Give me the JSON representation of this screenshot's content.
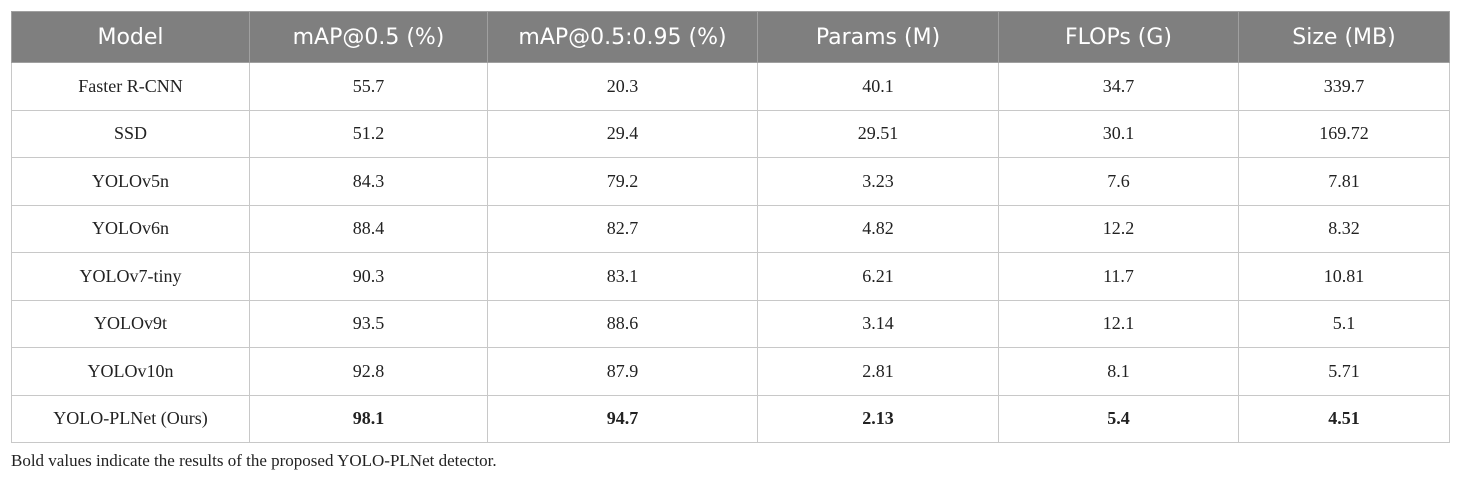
{
  "table": {
    "header": [
      "Model",
      "mAP@0.5 (%)",
      "mAP@0.5:0.95 (%)",
      "Params (M)",
      "FLOPs (G)",
      "Size (MB)"
    ],
    "rows": [
      [
        "Faster R-CNN",
        "55.7",
        "20.3",
        "40.1",
        "34.7",
        "339.7"
      ],
      [
        "SSD",
        "51.2",
        "29.4",
        "29.51",
        "30.1",
        "169.72"
      ],
      [
        "YOLOv5n",
        "84.3",
        "79.2",
        "3.23",
        "7.6",
        "7.81"
      ],
      [
        "YOLOv6n",
        "88.4",
        "82.7",
        "4.82",
        "12.2",
        "8.32"
      ],
      [
        "YOLOv7-tiny",
        "90.3",
        "83.1",
        "6.21",
        "11.7",
        "10.81"
      ],
      [
        "YOLOv9t",
        "93.5",
        "88.6",
        "3.14",
        "12.1",
        "5.1"
      ],
      [
        "YOLOv10n",
        "92.8",
        "87.9",
        "2.81",
        "8.1",
        "5.71"
      ],
      [
        "YOLO-PLNet (Ours)",
        "98.1",
        "94.7",
        "2.13",
        "5.4",
        "4.51"
      ]
    ]
  },
  "footnote": "Bold values indicate the results of the proposed YOLO-PLNet detector."
}
